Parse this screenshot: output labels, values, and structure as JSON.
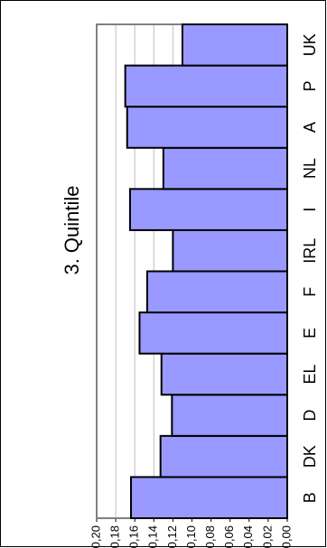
{
  "chart_data": {
    "type": "bar",
    "orientation": "rotated-90-clockwise",
    "title": "3. Quintile",
    "categories": [
      "B",
      "DK",
      "D",
      "EL",
      "E",
      "F",
      "IRL",
      "I",
      "NL",
      "A",
      "P",
      "UK"
    ],
    "values": [
      0.164,
      0.133,
      0.121,
      0.132,
      0.155,
      0.147,
      0.12,
      0.165,
      0.13,
      0.168,
      0.17,
      0.11
    ],
    "value_ticks": [
      "0,00",
      "0,02",
      "0,04",
      "0,06",
      "0,08",
      "0,10",
      "0,12",
      "0,14",
      "0,16",
      "0,18",
      "0,20"
    ],
    "ylim": [
      0,
      0.2
    ],
    "grid": true,
    "colors": {
      "bar": "#9999ff",
      "bar_edge": "#000000",
      "grid": "#c0c0c0",
      "plot_border": "#808080"
    }
  }
}
